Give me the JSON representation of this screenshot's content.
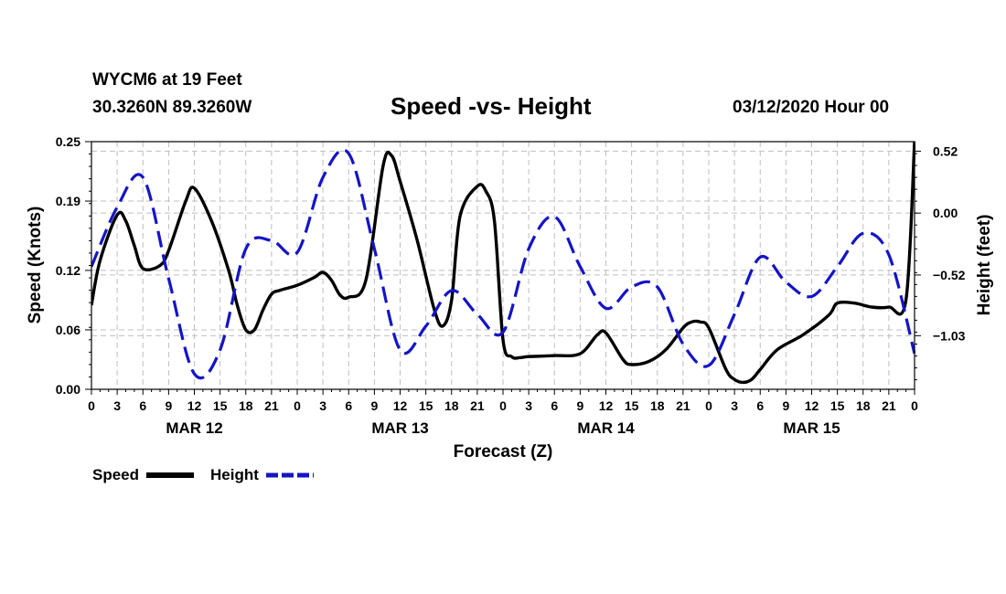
{
  "header": {
    "station": "WYCM6 at 19 Feet",
    "coords": "30.3260N 89.3260W",
    "title": "Speed -vs- Height",
    "date": "03/12/2020 Hour 00"
  },
  "legend": {
    "speed": "Speed",
    "height": "Height"
  },
  "colors": {
    "speed": "#000000",
    "height": "#1414c8",
    "grid": "#bfbfbf"
  },
  "chart_data": {
    "type": "line",
    "title": "Speed -vs- Height",
    "xlabel": "Forecast (Z)",
    "ylabel": "Speed (Knots)",
    "y2label": "Height (feet)",
    "xlim": [
      0,
      96
    ],
    "ylim": [
      0,
      0.25
    ],
    "y2lim": [
      -1.48,
      0.6
    ],
    "x_tick_labels": [
      "0",
      "3",
      "6",
      "9",
      "12",
      "15",
      "18",
      "21",
      "0",
      "3",
      "6",
      "9",
      "12",
      "15",
      "18",
      "21",
      "0",
      "3",
      "6",
      "9",
      "12",
      "15",
      "18",
      "21",
      "0",
      "3",
      "6",
      "9",
      "12",
      "15",
      "18",
      "21",
      "0"
    ],
    "y_tick_values": [
      0,
      0.06,
      0.12,
      0.19,
      0.25
    ],
    "y_tick_labels": [
      "0.00",
      "0.06",
      "0.12",
      "0.19",
      "0.25"
    ],
    "y2_tick_values": [
      0.52,
      0,
      -0.52,
      -1.03
    ],
    "y2_tick_labels": [
      "0.52",
      "0.00",
      "−0.52",
      "−1.03"
    ],
    "day_labels": [
      {
        "x": 12,
        "label": "MAR 12"
      },
      {
        "x": 36,
        "label": "MAR 13"
      },
      {
        "x": 60,
        "label": "MAR 14"
      },
      {
        "x": 84,
        "label": "MAR 15"
      }
    ],
    "series": [
      {
        "name": "Speed",
        "axis": "left",
        "style": "solid",
        "x": [
          0,
          1,
          3,
          4,
          5,
          6,
          8,
          9,
          11,
          12,
          14,
          16,
          17,
          18,
          19,
          20,
          21,
          22,
          24,
          26,
          27,
          28,
          29,
          30,
          32,
          34,
          35,
          36,
          38,
          40,
          41,
          42,
          43,
          45,
          46,
          47,
          48,
          49,
          50,
          51,
          54,
          57,
          59,
          60,
          62,
          63,
          65,
          67,
          69,
          70,
          71,
          72,
          74,
          75,
          76,
          77,
          78,
          80,
          83,
          86,
          87,
          89,
          91,
          93,
          95,
          96
        ],
        "y": [
          0.085,
          0.13,
          0.176,
          0.17,
          0.145,
          0.122,
          0.125,
          0.14,
          0.19,
          0.203,
          0.17,
          0.12,
          0.085,
          0.06,
          0.06,
          0.08,
          0.096,
          0.1,
          0.105,
          0.113,
          0.118,
          0.11,
          0.095,
          0.093,
          0.11,
          0.225,
          0.236,
          0.21,
          0.15,
          0.08,
          0.064,
          0.09,
          0.175,
          0.205,
          0.2,
          0.17,
          0.05,
          0.033,
          0.032,
          0.033,
          0.034,
          0.036,
          0.055,
          0.057,
          0.03,
          0.025,
          0.028,
          0.04,
          0.062,
          0.068,
          0.068,
          0.062,
          0.02,
          0.01,
          0.007,
          0.01,
          0.02,
          0.04,
          0.055,
          0.075,
          0.087,
          0.087,
          0.083,
          0.083,
          0.09,
          0.25
        ]
      },
      {
        "name": "Height",
        "axis": "right",
        "style": "dashed",
        "x": [
          0,
          3,
          6,
          9,
          12,
          15,
          18,
          21,
          24,
          27,
          30,
          33,
          36,
          39,
          42,
          45,
          48,
          51,
          54,
          57,
          60,
          63,
          66,
          69,
          72,
          75,
          78,
          81,
          84,
          87,
          90,
          93,
          96
        ],
        "y": [
          -0.45,
          0.05,
          0.3,
          -0.55,
          -1.35,
          -1.15,
          -0.3,
          -0.23,
          -0.33,
          0.3,
          0.5,
          -0.3,
          -1.15,
          -0.95,
          -0.65,
          -0.85,
          -1.0,
          -0.3,
          -0.03,
          -0.45,
          -0.8,
          -0.62,
          -0.62,
          -1.1,
          -1.28,
          -0.85,
          -0.37,
          -0.58,
          -0.7,
          -0.45,
          -0.17,
          -0.35,
          -1.18
        ]
      }
    ]
  }
}
